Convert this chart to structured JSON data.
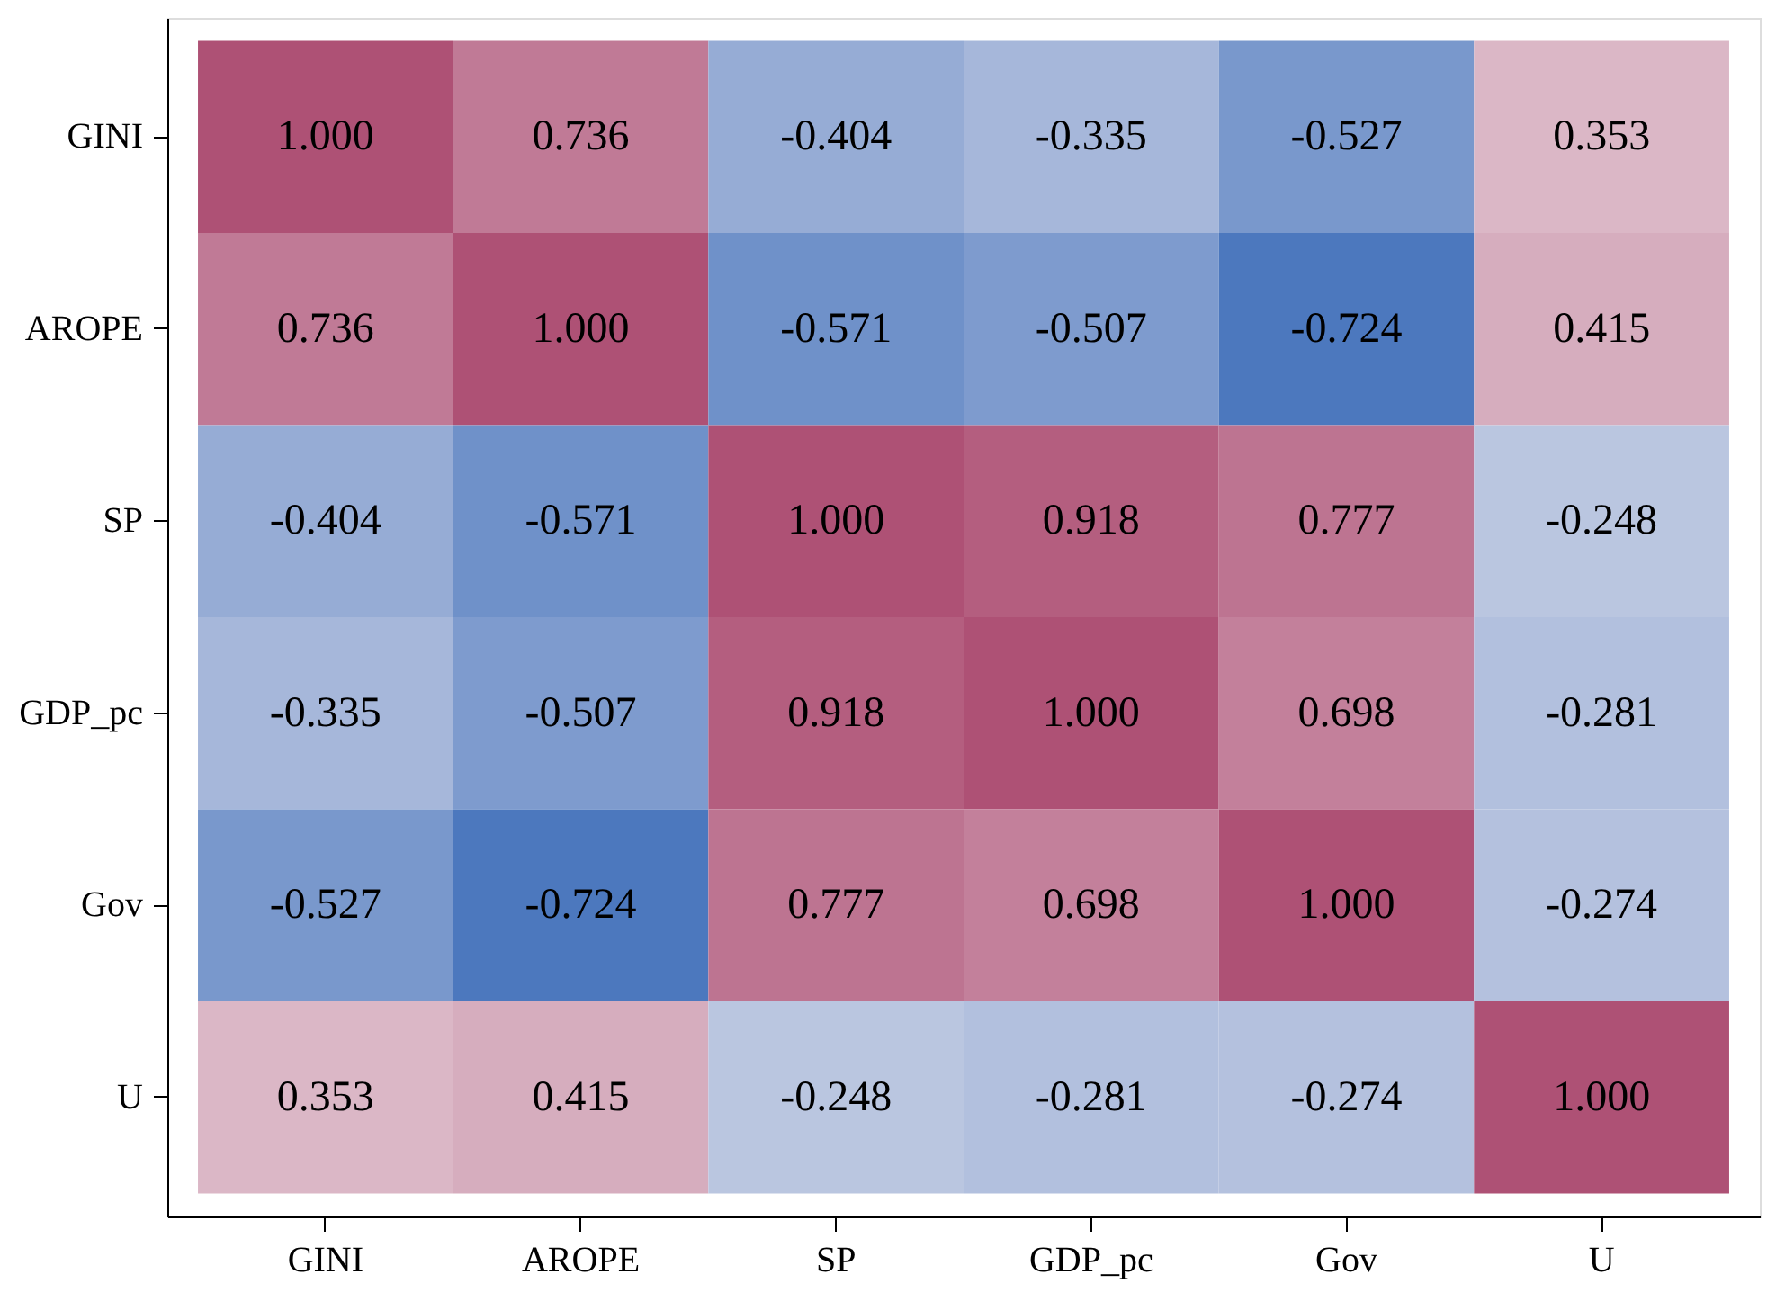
{
  "chart_data": {
    "type": "heatmap",
    "data_labels": true,
    "categories": [
      "GINI",
      "AROPE",
      "SP",
      "GDP_pc",
      "Gov",
      "U"
    ],
    "y_categories": [
      "GINI",
      "AROPE",
      "SP",
      "GDP_pc",
      "Gov",
      "U"
    ],
    "cells": [
      [
        1.0,
        0.736,
        -0.404,
        -0.335,
        -0.527,
        0.353
      ],
      [
        0.736,
        1.0,
        -0.571,
        -0.507,
        -0.724,
        0.415
      ],
      [
        -0.404,
        -0.571,
        1.0,
        0.918,
        0.777,
        -0.248
      ],
      [
        -0.335,
        -0.507,
        0.918,
        1.0,
        0.698,
        -0.281
      ],
      [
        -0.527,
        -0.724,
        0.777,
        0.698,
        1.0,
        -0.274
      ],
      [
        0.353,
        0.415,
        -0.248,
        -0.281,
        -0.274,
        1.0
      ]
    ],
    "cell_labels": [
      [
        "1.000",
        "0.736",
        "-0.404",
        "-0.335",
        "-0.527",
        "0.353"
      ],
      [
        "0.736",
        "1.000",
        "-0.571",
        "-0.507",
        "-0.724",
        "0.415"
      ],
      [
        "-0.404",
        "-0.571",
        "1.000",
        "0.918",
        "0.777",
        "-0.248"
      ],
      [
        "-0.335",
        "-0.507",
        "0.918",
        "1.000",
        "0.698",
        "-0.281"
      ],
      [
        "-0.527",
        "-0.724",
        "0.777",
        "0.698",
        "1.000",
        "-0.274"
      ],
      [
        "0.353",
        "0.415",
        "-0.248",
        "-0.281",
        "-0.274",
        "1.000"
      ]
    ]
  }
}
